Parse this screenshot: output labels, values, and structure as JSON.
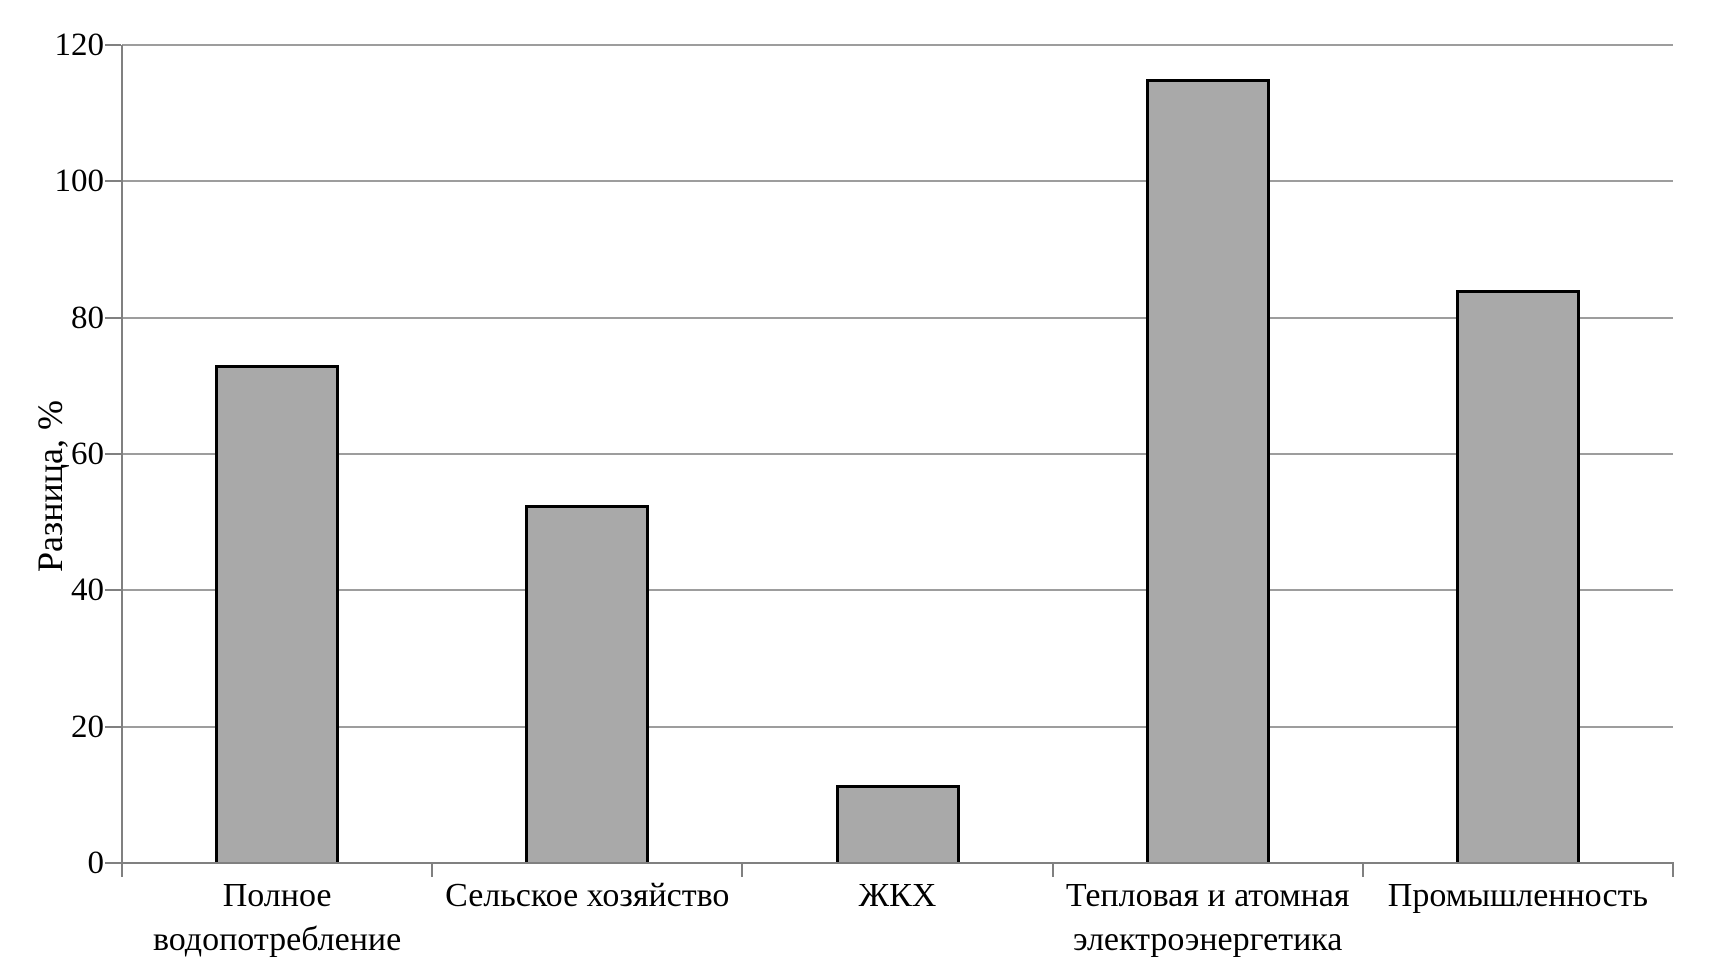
{
  "chart_data": {
    "type": "bar",
    "title": "",
    "xlabel": "",
    "ylabel": "Разница, %",
    "categories": [
      "Полное\nводопотребление",
      "Сельское хозяйство",
      "ЖКХ",
      "Тепловая и атомная\nэлектроэнергетика",
      "Промышленность"
    ],
    "values": [
      73,
      52.5,
      11.5,
      115,
      84
    ],
    "ylim": [
      0,
      120
    ],
    "yticks": [
      0,
      20,
      40,
      60,
      80,
      100,
      120
    ],
    "grid": "horizontal",
    "legend_position": "none",
    "bar_fill_color": "#a9a9a9",
    "bar_border_color": "#000000",
    "gridline_color": "#9d9d9d",
    "axis_color": "#808080",
    "text_color": "#000000",
    "background_color": "#ffffff"
  }
}
